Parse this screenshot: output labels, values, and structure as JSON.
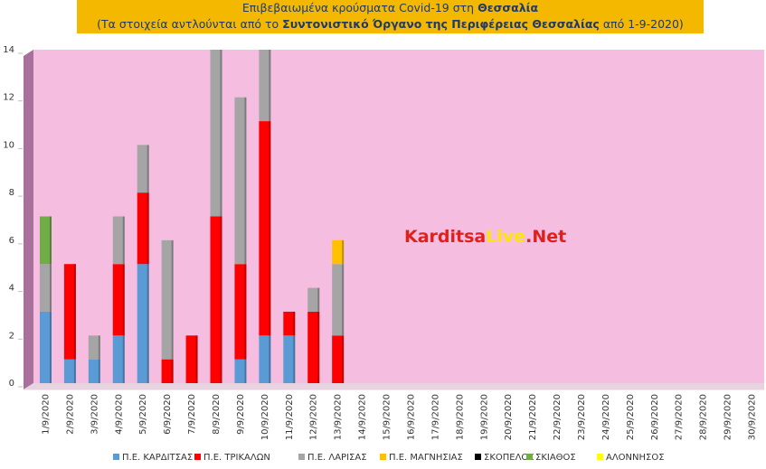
{
  "chart_data": {
    "type": "stacked_bar",
    "title": [
      "Επιβεβαιωμένα κρούσματα Covid-19 στη",
      "Θεσσαλία"
    ],
    "subtitle": [
      "(Τα στοιχεία αντλούνται από το",
      "Συντονιστικό Όργανο της Περιφέρειας Θεσσαλίας",
      "από 1-9-2020)"
    ],
    "watermark": [
      "Karditsa",
      "Live",
      ".Net"
    ],
    "categories": [
      "1/9/2020",
      "2/9/2020",
      "3/9/2020",
      "4/9/2020",
      "5/9/2020",
      "6/9/2020",
      "7/9/2020",
      "8/9/2020",
      "9/9/2020",
      "10/9/2020",
      "11/9/2020",
      "12/9/2020",
      "13/9/2020",
      "14/9/2020",
      "15/9/2020",
      "16/9/2020",
      "17/9/2020",
      "18/9/2020",
      "19/9/2020",
      "20/9/2020",
      "21/9/2020",
      "22/9/2020",
      "23/9/2020",
      "24/9/2020",
      "25/9/2020",
      "26/9/2020",
      "27/9/2020",
      "28/9/2020",
      "29/9/2020",
      "30/9/2020"
    ],
    "series": [
      {
        "name": "Π.Ε. ΚΑΡΔΙΤΣΑΣ",
        "color": "#5b9bd5",
        "values": [
          3,
          1,
          1,
          2,
          5,
          0,
          0,
          0,
          1,
          2,
          2,
          0,
          0,
          0,
          0,
          0,
          0,
          0,
          0,
          0,
          0,
          0,
          0,
          0,
          0,
          0,
          0,
          0,
          0,
          0
        ]
      },
      {
        "name": "Π.Ε. ΤΡΙΚΑΛΩΝ",
        "color": "#ff0000",
        "values": [
          0,
          4,
          0,
          3,
          3,
          1,
          2,
          7,
          4,
          9,
          1,
          3,
          2,
          0,
          0,
          0,
          0,
          0,
          0,
          0,
          0,
          0,
          0,
          0,
          0,
          0,
          0,
          0,
          0,
          0
        ]
      },
      {
        "name": "Π.Ε. ΛΑΡΙΣΑΣ",
        "color": "#a5a5a5",
        "values": [
          2,
          0,
          1,
          2,
          2,
          5,
          0,
          7,
          7,
          3,
          0,
          1,
          3,
          0,
          0,
          0,
          0,
          0,
          0,
          0,
          0,
          0,
          0,
          0,
          0,
          0,
          0,
          0,
          0,
          0
        ]
      },
      {
        "name": "Π.Ε. ΜΑΓΝΗΣΙΑΣ",
        "color": "#ffc000",
        "values": [
          0,
          0,
          0,
          0,
          0,
          0,
          0,
          0,
          0,
          0,
          0,
          0,
          1,
          0,
          0,
          0,
          0,
          0,
          0,
          0,
          0,
          0,
          0,
          0,
          0,
          0,
          0,
          0,
          0,
          0
        ]
      },
      {
        "name": "ΣΚΟΠΕΛΟΣ",
        "color": "#000000",
        "values": [
          0,
          0,
          0,
          0,
          0,
          0,
          0,
          0,
          0,
          0,
          0,
          0,
          0,
          0,
          0,
          0,
          0,
          0,
          0,
          0,
          0,
          0,
          0,
          0,
          0,
          0,
          0,
          0,
          0,
          0
        ]
      },
      {
        "name": "ΣΚΙΑΘΟΣ",
        "color": "#70ad47",
        "values": [
          2,
          0,
          0,
          0,
          0,
          0,
          0,
          0,
          0,
          0,
          0,
          0,
          0,
          0,
          0,
          0,
          0,
          0,
          0,
          0,
          0,
          0,
          0,
          0,
          0,
          0,
          0,
          0,
          0,
          0
        ]
      },
      {
        "name": "ΑΛΟΝΝΗΣΟΣ",
        "color": "#ffff00",
        "values": [
          0,
          0,
          0,
          0,
          0,
          0,
          0,
          0,
          0,
          0,
          0,
          0,
          0,
          0,
          0,
          0,
          0,
          0,
          0,
          0,
          0,
          0,
          0,
          0,
          0,
          0,
          0,
          0,
          0,
          0
        ]
      }
    ],
    "ylim": [
      0,
      14
    ],
    "yticks": [
      0,
      2,
      4,
      6,
      8,
      10,
      12,
      14
    ],
    "grid": false
  }
}
